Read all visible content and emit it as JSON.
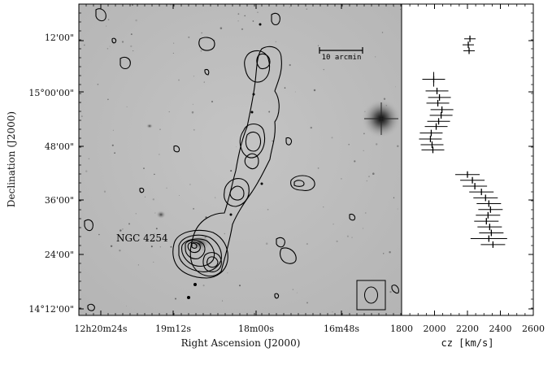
{
  "chart_data": [
    {
      "type": "image-contour",
      "ylabel": "Declination (J2000)",
      "xlabel": "Right Ascension (J2000)",
      "x_ticks": [
        "12h20m24s",
        "19m12s",
        "18m00s",
        "16m48s"
      ],
      "y_ticks": [
        "12'00\"",
        "15°00'00\"",
        "48'00\"",
        "36'00\"",
        "24'00\"",
        "14°12'00\""
      ],
      "annotations": [
        "NGC 4254"
      ],
      "scale_bar": "10 arcmin"
    },
    {
      "type": "errorbar",
      "xlabel": "cz  [km/s]",
      "xlim": [
        1800,
        2600
      ],
      "x_ticks": [
        1800,
        2000,
        2200,
        2400,
        2600
      ],
      "y_ticks": [
        "12'00\"",
        "15°00'00\"",
        "48'00\"",
        "36'00\"",
        "24'00\"",
        "14°12'00\""
      ],
      "ylim": [
        14.1,
        15.3
      ],
      "points": [
        {
          "cz": 2215,
          "dec": 15.166
        },
        {
          "cz": 2205,
          "dec": 15.143
        },
        {
          "cz": 2210,
          "dec": 15.12
        },
        {
          "cz": 1995,
          "dec": 15.01
        },
        {
          "cz": 2015,
          "dec": 14.965
        },
        {
          "cz": 2030,
          "dec": 14.94
        },
        {
          "cz": 2020,
          "dec": 14.918
        },
        {
          "cz": 2045,
          "dec": 14.893
        },
        {
          "cz": 2040,
          "dec": 14.871
        },
        {
          "cz": 2025,
          "dec": 14.848
        },
        {
          "cz": 2010,
          "dec": 14.828
        },
        {
          "cz": 1980,
          "dec": 14.803
        },
        {
          "cz": 1975,
          "dec": 14.78
        },
        {
          "cz": 1985,
          "dec": 14.758
        },
        {
          "cz": 1990,
          "dec": 14.738
        },
        {
          "cz": 2200,
          "dec": 14.643
        },
        {
          "cz": 2230,
          "dec": 14.621
        },
        {
          "cz": 2245,
          "dec": 14.598
        },
        {
          "cz": 2285,
          "dec": 14.576
        },
        {
          "cz": 2310,
          "dec": 14.553
        },
        {
          "cz": 2330,
          "dec": 14.531
        },
        {
          "cz": 2340,
          "dec": 14.508
        },
        {
          "cz": 2325,
          "dec": 14.486
        },
        {
          "cz": 2315,
          "dec": 14.463
        },
        {
          "cz": 2335,
          "dec": 14.441
        },
        {
          "cz": 2345,
          "dec": 14.418
        },
        {
          "cz": 2330,
          "dec": 14.396
        },
        {
          "cz": 2355,
          "dec": 14.373
        }
      ]
    }
  ]
}
